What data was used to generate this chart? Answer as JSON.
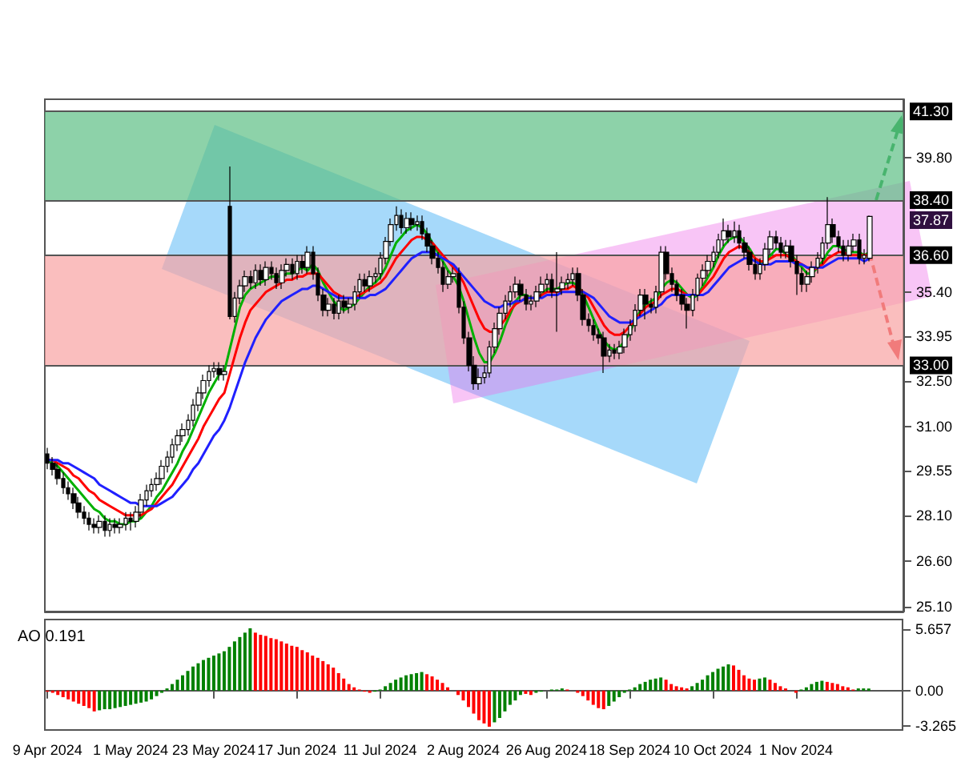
{
  "chart_data": [
    {
      "type": "candlestick",
      "color": "#000000",
      "categories": [
        null,
        null,
        null,
        null,
        null,
        null,
        null,
        null,
        null,
        null,
        null,
        null,
        null,
        null,
        null,
        null,
        null,
        null,
        null,
        null,
        null,
        null,
        null,
        null,
        null,
        null,
        null,
        null,
        null,
        null,
        null,
        null,
        null,
        null,
        null,
        null,
        null,
        null,
        null,
        null,
        null,
        null,
        null,
        null,
        null,
        null,
        null,
        null,
        null,
        null,
        null,
        null,
        null,
        null,
        null,
        null,
        null,
        null,
        null,
        null,
        null,
        null,
        null,
        null,
        null,
        null,
        null,
        null,
        null,
        null,
        null,
        null,
        null,
        null,
        null,
        null,
        null,
        null,
        null,
        null,
        null,
        null,
        null,
        null,
        null,
        null,
        null,
        null,
        null,
        null,
        null,
        null,
        null,
        null,
        null,
        null,
        null,
        null,
        null,
        null,
        null,
        null,
        null,
        null,
        null,
        null,
        null,
        null,
        null,
        null,
        null,
        null,
        null,
        null,
        null,
        null,
        null,
        null,
        null,
        null,
        null,
        null,
        null,
        null,
        null,
        null,
        null,
        null,
        null,
        null,
        null,
        null,
        null,
        null,
        null,
        null,
        null,
        null,
        null,
        null,
        null,
        null,
        null,
        null,
        null,
        null,
        null,
        null,
        null,
        null,
        null,
        null,
        null,
        null,
        null,
        null,
        null,
        null,
        null
      ],
      "ohlc": [
        [
          30.1,
          30.3,
          29.6,
          29.8
        ],
        [
          29.8,
          30.0,
          29.4,
          29.6
        ],
        [
          29.6,
          29.8,
          29.1,
          29.3
        ],
        [
          29.3,
          29.5,
          28.8,
          29.0
        ],
        [
          29.0,
          29.2,
          28.6,
          28.8
        ],
        [
          28.8,
          29.0,
          28.3,
          28.5
        ],
        [
          28.5,
          28.7,
          28.0,
          28.2
        ],
        [
          28.2,
          28.4,
          27.8,
          28.0
        ],
        [
          28.0,
          28.2,
          27.6,
          27.8
        ],
        [
          27.8,
          28.0,
          27.5,
          27.7
        ],
        [
          27.7,
          28.1,
          27.5,
          27.9
        ],
        [
          27.9,
          28.1,
          27.4,
          27.6
        ],
        [
          27.6,
          28.0,
          27.4,
          27.8
        ],
        [
          27.8,
          28.0,
          27.5,
          27.7
        ],
        [
          27.7,
          28.0,
          27.5,
          27.8
        ],
        [
          27.8,
          28.2,
          27.6,
          28.0
        ],
        [
          28.0,
          28.2,
          27.6,
          27.9
        ],
        [
          27.9,
          28.4,
          27.7,
          28.2
        ],
        [
          28.2,
          28.8,
          28.0,
          28.6
        ],
        [
          28.6,
          29.1,
          28.4,
          28.9
        ],
        [
          28.9,
          29.3,
          28.7,
          29.1
        ],
        [
          29.1,
          29.5,
          28.9,
          29.3
        ],
        [
          29.3,
          29.9,
          29.1,
          29.7
        ],
        [
          29.7,
          30.2,
          29.5,
          30.0
        ],
        [
          30.0,
          30.6,
          29.8,
          30.4
        ],
        [
          30.4,
          30.9,
          30.2,
          30.7
        ],
        [
          30.7,
          31.1,
          30.5,
          30.9
        ],
        [
          30.9,
          31.4,
          30.7,
          31.2
        ],
        [
          31.2,
          31.9,
          31.0,
          31.7
        ],
        [
          31.7,
          32.3,
          31.5,
          32.1
        ],
        [
          32.1,
          32.7,
          31.9,
          32.5
        ],
        [
          32.5,
          33.0,
          32.3,
          32.8
        ],
        [
          32.8,
          33.1,
          32.6,
          32.9
        ],
        [
          32.9,
          33.1,
          32.5,
          32.7
        ],
        [
          32.7,
          33.0,
          32.5,
          32.8
        ],
        [
          38.2,
          39.5,
          34.5,
          34.6
        ],
        [
          34.6,
          35.4,
          34.4,
          35.2
        ],
        [
          35.2,
          35.8,
          35.0,
          35.6
        ],
        [
          35.6,
          36.1,
          35.4,
          35.9
        ],
        [
          35.9,
          36.1,
          35.5,
          35.7
        ],
        [
          35.7,
          36.3,
          35.5,
          36.1
        ],
        [
          36.1,
          36.3,
          35.6,
          35.8
        ],
        [
          35.8,
          36.4,
          35.6,
          36.2
        ],
        [
          36.2,
          36.4,
          35.8,
          36.0
        ],
        [
          36.0,
          36.2,
          35.5,
          35.7
        ],
        [
          35.7,
          36.3,
          35.5,
          36.1
        ],
        [
          36.1,
          36.5,
          35.9,
          36.3
        ],
        [
          36.3,
          36.5,
          35.8,
          36.0
        ],
        [
          36.0,
          36.6,
          35.8,
          36.4
        ],
        [
          36.4,
          36.6,
          36.0,
          36.2
        ],
        [
          36.2,
          36.9,
          36.0,
          36.7
        ],
        [
          36.7,
          36.9,
          35.8,
          36.0
        ],
        [
          36.0,
          36.2,
          35.1,
          35.3
        ],
        [
          35.3,
          35.5,
          34.6,
          34.8
        ],
        [
          34.8,
          35.2,
          34.6,
          35.0
        ],
        [
          35.0,
          35.2,
          34.5,
          34.7
        ],
        [
          34.7,
          35.3,
          34.5,
          35.1
        ],
        [
          35.1,
          35.3,
          34.7,
          34.9
        ],
        [
          34.9,
          35.2,
          34.7,
          35.0
        ],
        [
          35.0,
          35.6,
          34.8,
          35.4
        ],
        [
          35.4,
          36.0,
          35.2,
          35.8
        ],
        [
          35.8,
          36.0,
          35.4,
          35.6
        ],
        [
          35.6,
          36.1,
          35.4,
          35.9
        ],
        [
          35.9,
          36.2,
          35.7,
          36.0
        ],
        [
          36.0,
          36.7,
          35.8,
          36.5
        ],
        [
          36.5,
          37.2,
          36.3,
          37.05
        ],
        [
          37.05,
          37.8,
          36.9,
          37.6
        ],
        [
          37.6,
          38.2,
          37.4,
          37.9
        ],
        [
          37.9,
          38.1,
          37.3,
          37.5
        ],
        [
          37.5,
          38.0,
          37.3,
          37.8
        ],
        [
          37.8,
          38.0,
          37.4,
          37.6
        ],
        [
          37.6,
          37.9,
          37.4,
          37.7
        ],
        [
          37.7,
          37.9,
          37.1,
          37.3
        ],
        [
          37.3,
          37.5,
          36.7,
          36.9
        ],
        [
          36.9,
          37.1,
          36.3,
          36.5
        ],
        [
          36.5,
          36.7,
          36.0,
          36.2
        ],
        [
          36.2,
          36.4,
          35.4,
          35.65
        ],
        [
          35.65,
          36.1,
          35.5,
          35.9
        ],
        [
          35.9,
          36.2,
          35.7,
          36.0
        ],
        [
          36.0,
          36.2,
          34.7,
          34.9
        ],
        [
          34.9,
          35.1,
          33.7,
          33.9
        ],
        [
          33.9,
          34.1,
          32.8,
          33.0
        ],
        [
          33.0,
          33.3,
          32.2,
          32.4
        ],
        [
          32.4,
          32.9,
          32.2,
          32.6
        ],
        [
          32.6,
          33.0,
          32.4,
          32.75
        ],
        [
          32.75,
          33.8,
          32.6,
          33.6
        ],
        [
          33.6,
          34.4,
          33.4,
          34.2
        ],
        [
          34.2,
          34.9,
          34.0,
          34.7
        ],
        [
          34.7,
          35.3,
          34.5,
          35.1
        ],
        [
          35.1,
          35.6,
          34.9,
          35.4
        ],
        [
          35.4,
          35.9,
          35.2,
          35.65
        ],
        [
          35.65,
          35.8,
          35.1,
          35.3
        ],
        [
          35.3,
          35.5,
          34.8,
          35.0
        ],
        [
          35.0,
          35.3,
          34.8,
          35.1
        ],
        [
          35.1,
          35.6,
          34.9,
          35.4
        ],
        [
          35.4,
          35.9,
          35.2,
          35.65
        ],
        [
          35.65,
          36.0,
          35.4,
          35.8
        ],
        [
          35.8,
          36.0,
          35.2,
          35.4
        ],
        [
          35.4,
          36.7,
          34.1,
          35.5
        ],
        [
          35.5,
          35.9,
          35.3,
          35.7
        ],
        [
          35.7,
          36.0,
          35.5,
          35.8
        ],
        [
          35.8,
          36.2,
          35.6,
          36.0
        ],
        [
          36.0,
          36.2,
          35.1,
          35.3
        ],
        [
          35.3,
          35.5,
          34.3,
          34.5
        ],
        [
          34.5,
          34.7,
          34.1,
          34.3
        ],
        [
          34.3,
          34.5,
          33.8,
          34.0
        ],
        [
          34.0,
          34.2,
          33.7,
          33.9
        ],
        [
          33.9,
          34.1,
          32.75,
          33.3
        ],
        [
          33.3,
          33.7,
          33.1,
          33.5
        ],
        [
          33.5,
          33.7,
          33.2,
          33.4
        ],
        [
          33.4,
          33.8,
          33.2,
          33.6
        ],
        [
          33.6,
          34.2,
          33.4,
          34.0
        ],
        [
          34.0,
          34.5,
          33.8,
          34.3
        ],
        [
          34.3,
          35.0,
          34.1,
          34.8
        ],
        [
          34.8,
          35.5,
          34.6,
          35.3
        ],
        [
          35.3,
          35.5,
          34.5,
          35.0
        ],
        [
          35.0,
          35.2,
          34.7,
          34.9
        ],
        [
          34.9,
          35.6,
          34.7,
          35.4
        ],
        [
          35.4,
          36.9,
          35.2,
          36.7
        ],
        [
          36.7,
          36.9,
          35.8,
          36.0
        ],
        [
          36.0,
          36.2,
          35.4,
          35.65
        ],
        [
          35.65,
          35.8,
          35.1,
          35.3
        ],
        [
          35.3,
          35.5,
          34.8,
          35.0
        ],
        [
          35.0,
          35.2,
          34.2,
          34.8
        ],
        [
          34.8,
          35.5,
          34.6,
          35.3
        ],
        [
          35.3,
          36.0,
          35.1,
          35.85
        ],
        [
          35.85,
          36.3,
          35.6,
          36.1
        ],
        [
          36.1,
          36.6,
          35.9,
          36.4
        ],
        [
          36.4,
          36.9,
          36.2,
          36.7
        ],
        [
          36.7,
          37.3,
          36.5,
          37.1
        ],
        [
          37.1,
          37.8,
          36.9,
          37.4
        ],
        [
          37.4,
          37.6,
          37.0,
          37.2
        ],
        [
          37.2,
          37.7,
          37.0,
          37.4
        ],
        [
          37.4,
          37.6,
          36.8,
          37.0
        ],
        [
          37.0,
          37.2,
          36.5,
          36.7
        ],
        [
          36.7,
          36.9,
          36.1,
          36.3
        ],
        [
          36.3,
          36.5,
          35.8,
          36.0
        ],
        [
          36.0,
          36.5,
          35.8,
          36.3
        ],
        [
          36.3,
          37.0,
          36.1,
          36.8
        ],
        [
          36.8,
          37.4,
          36.6,
          37.2
        ],
        [
          37.2,
          37.4,
          36.8,
          37.0
        ],
        [
          37.0,
          37.2,
          36.5,
          36.7
        ],
        [
          36.7,
          37.1,
          36.5,
          36.9
        ],
        [
          36.9,
          37.1,
          36.2,
          36.4
        ],
        [
          36.4,
          36.6,
          35.3,
          36.0
        ],
        [
          36.0,
          36.2,
          35.4,
          35.65
        ],
        [
          35.65,
          36.1,
          35.4,
          35.9
        ],
        [
          35.9,
          36.4,
          35.7,
          36.2
        ],
        [
          36.2,
          36.7,
          36.0,
          36.5
        ],
        [
          36.5,
          37.2,
          36.3,
          37.0
        ],
        [
          37.0,
          38.5,
          36.8,
          37.6
        ],
        [
          37.6,
          37.8,
          37.0,
          37.2
        ],
        [
          37.2,
          37.4,
          36.7,
          36.9
        ],
        [
          36.9,
          37.1,
          36.4,
          36.6
        ],
        [
          36.6,
          37.1,
          36.4,
          36.9
        ],
        [
          36.9,
          37.3,
          36.7,
          37.1
        ],
        [
          37.1,
          37.3,
          36.3,
          36.5
        ],
        [
          36.5,
          36.8,
          36.3,
          36.6
        ],
        [
          36.5,
          37.9,
          36.4,
          37.87
        ]
      ],
      "series": [
        {
          "type": "line",
          "color": "#00b000",
          "values": [
            29.9,
            29.8,
            29.7,
            29.5,
            29.3,
            29.1,
            28.9,
            28.7,
            28.5,
            28.3,
            28.2,
            28.0,
            27.9,
            27.9,
            27.8,
            27.8,
            27.9,
            27.9,
            28.0,
            28.2,
            28.4,
            28.7,
            28.9,
            29.2,
            29.5,
            29.8,
            30.2,
            30.5,
            30.9,
            31.3,
            31.7,
            32.1,
            32.4,
            32.7,
            32.8,
            33.5,
            34.2,
            34.9,
            35.3,
            35.5,
            35.6,
            35.7,
            35.8,
            35.9,
            35.9,
            35.9,
            36.0,
            36.0,
            36.1,
            36.2,
            36.1,
            36.3,
            36.1,
            35.7,
            35.4,
            35.1,
            34.9,
            34.8,
            34.9,
            35.0,
            35.2,
            35.4,
            35.6,
            35.7,
            35.9,
            36.2,
            36.6,
            37.0,
            37.2,
            37.4,
            37.5,
            37.6,
            37.5,
            37.3,
            37.0,
            36.7,
            36.4,
            36.1,
            35.9,
            35.6,
            35.1,
            34.5,
            33.9,
            33.4,
            33.1,
            33.1,
            33.4,
            33.8,
            34.3,
            34.7,
            35.1,
            35.3,
            35.3,
            35.2,
            35.2,
            35.3,
            35.5,
            35.5,
            35.5,
            35.6,
            35.7,
            35.7,
            35.6,
            35.3,
            34.9,
            34.5,
            34.1,
            33.8,
            33.6,
            33.5,
            33.6,
            33.8,
            34.1,
            34.5,
            34.8,
            35.0,
            35.1,
            35.2,
            35.5,
            35.7,
            35.8,
            35.7,
            35.5,
            35.3,
            35.2,
            35.3,
            35.6,
            35.9,
            36.2,
            36.6,
            36.9,
            37.1,
            37.2,
            37.2,
            37.0,
            36.8,
            36.5,
            36.3,
            36.4,
            36.6,
            36.8,
            36.8,
            36.6,
            36.6,
            36.4,
            36.2,
            36.0,
            36.0,
            36.2,
            36.4,
            36.7,
            36.9,
            36.9,
            36.8,
            36.7,
            36.7,
            36.7,
            36.6,
            36.7
          ]
        },
        {
          "type": "line",
          "color": "#ff0000",
          "values": [
            29.9,
            29.9,
            29.8,
            29.7,
            29.6,
            29.4,
            29.3,
            29.1,
            28.9,
            28.8,
            28.6,
            28.5,
            28.4,
            28.3,
            28.2,
            28.1,
            28.1,
            28.1,
            28.1,
            28.2,
            28.3,
            28.5,
            28.7,
            28.9,
            29.1,
            29.4,
            29.7,
            30.0,
            30.3,
            30.6,
            31.0,
            31.3,
            31.6,
            31.9,
            32.1,
            32.7,
            33.3,
            33.9,
            34.4,
            34.8,
            35.0,
            35.2,
            35.4,
            35.5,
            35.6,
            35.7,
            35.8,
            35.8,
            35.9,
            35.9,
            36.0,
            36.0,
            36.0,
            35.8,
            35.6,
            35.4,
            35.3,
            35.2,
            35.2,
            35.2,
            35.3,
            35.4,
            35.5,
            35.6,
            35.7,
            35.9,
            36.2,
            36.5,
            36.7,
            36.9,
            37.1,
            37.2,
            37.2,
            37.1,
            37.0,
            36.8,
            36.6,
            36.4,
            36.2,
            36.0,
            35.7,
            35.3,
            34.9,
            34.5,
            34.2,
            34.1,
            34.1,
            34.3,
            34.5,
            34.8,
            35.0,
            35.1,
            35.2,
            35.2,
            35.2,
            35.3,
            35.4,
            35.4,
            35.4,
            35.5,
            35.5,
            35.6,
            35.5,
            35.4,
            35.2,
            34.9,
            34.6,
            34.3,
            34.1,
            34.0,
            34.0,
            34.1,
            34.3,
            34.5,
            34.7,
            34.9,
            35.0,
            35.1,
            35.3,
            35.4,
            35.5,
            35.5,
            35.4,
            35.3,
            35.3,
            35.3,
            35.5,
            35.7,
            35.9,
            36.2,
            36.5,
            36.7,
            36.8,
            36.9,
            36.8,
            36.7,
            36.5,
            36.4,
            36.4,
            36.5,
            36.6,
            36.6,
            36.6,
            36.5,
            36.4,
            36.3,
            36.2,
            36.1,
            36.2,
            36.3,
            36.5,
            36.6,
            36.7,
            36.7,
            36.6,
            36.6,
            36.6,
            36.6,
            36.6
          ]
        },
        {
          "type": "line",
          "color": "#2020ff",
          "values": [
            29.9,
            29.9,
            29.9,
            29.8,
            29.8,
            29.7,
            29.6,
            29.5,
            29.4,
            29.3,
            29.1,
            29.0,
            28.9,
            28.8,
            28.7,
            28.6,
            28.5,
            28.5,
            28.4,
            28.4,
            28.4,
            28.4,
            28.5,
            28.6,
            28.7,
            28.9,
            29.1,
            29.3,
            29.6,
            29.8,
            30.1,
            30.4,
            30.7,
            30.9,
            31.2,
            31.6,
            32.1,
            32.6,
            33.1,
            33.5,
            33.9,
            34.2,
            34.5,
            34.7,
            34.9,
            35.1,
            35.2,
            35.3,
            35.4,
            35.5,
            35.5,
            35.6,
            35.6,
            35.5,
            35.4,
            35.3,
            35.2,
            35.2,
            35.2,
            35.2,
            35.2,
            35.2,
            35.3,
            35.3,
            35.4,
            35.5,
            35.7,
            35.9,
            36.1,
            36.3,
            36.5,
            36.6,
            36.7,
            36.7,
            36.7,
            36.6,
            36.5,
            36.4,
            36.3,
            36.1,
            35.9,
            35.7,
            35.5,
            35.3,
            35.1,
            35.0,
            34.9,
            34.9,
            35.0,
            35.0,
            35.1,
            35.1,
            35.2,
            35.2,
            35.2,
            35.2,
            35.3,
            35.3,
            35.3,
            35.4,
            35.4,
            35.4,
            35.4,
            35.4,
            35.3,
            35.2,
            35.0,
            34.8,
            34.6,
            34.5,
            34.4,
            34.4,
            34.4,
            34.5,
            34.6,
            34.7,
            34.8,
            34.9,
            35.0,
            35.2,
            35.3,
            35.3,
            35.3,
            35.3,
            35.3,
            35.3,
            35.3,
            35.4,
            35.6,
            35.8,
            36.0,
            36.2,
            36.3,
            36.4,
            36.5,
            36.5,
            36.4,
            36.3,
            36.3,
            36.3,
            36.4,
            36.4,
            36.4,
            36.4,
            36.3,
            36.3,
            36.2,
            36.2,
            36.2,
            36.2,
            36.3,
            36.4,
            36.5,
            36.5,
            36.5,
            36.5,
            36.5,
            36.4,
            36.5
          ]
        }
      ],
      "ylim": [
        24.95,
        41.7
      ],
      "yticks": [
        {
          "value": 25.1,
          "label": "25.10"
        },
        {
          "value": 26.6,
          "label": "26.60"
        },
        {
          "value": 28.1,
          "label": "28.10"
        },
        29.55,
        {
          "value": 31.0,
          "label": "31.00"
        },
        {
          "value": 32.5,
          "label": "32.50"
        },
        33.95,
        {
          "value": 35.4,
          "label": "35.40"
        },
        {
          "value": 39.8,
          "label": "39.80"
        }
      ],
      "ref_lines": [
        {
          "axis": "y",
          "value": 41.3,
          "label": "41.30",
          "color": "#555555"
        },
        {
          "axis": "y",
          "value": 38.4,
          "label": "38.40",
          "color": "#555555"
        },
        {
          "axis": "y",
          "value": 36.6,
          "label": "36.60",
          "color": "#555555"
        },
        {
          "axis": "y",
          "value": 33.0,
          "label": "33.00",
          "color": "#555555"
        }
      ],
      "bands": [
        {
          "axis": "y",
          "from": 38.4,
          "to": 41.3,
          "color": "#5cbf85"
        },
        {
          "axis": "y",
          "from": 33.0,
          "to": 36.6,
          "color": "#f8a3a3"
        }
      ],
      "annotations": [
        "37.87"
      ]
    },
    {
      "type": "bar",
      "title": "AO 0.191",
      "categories": [
        "9 Apr 2024",
        null,
        null,
        null,
        null,
        null,
        null,
        null,
        null,
        null,
        null,
        null,
        null,
        null,
        null,
        null,
        "1 May 2024",
        null,
        null,
        null,
        null,
        null,
        null,
        null,
        null,
        null,
        null,
        null,
        null,
        null,
        null,
        null,
        "23 May 2024",
        null,
        null,
        null,
        null,
        null,
        null,
        null,
        null,
        null,
        null,
        null,
        null,
        null,
        null,
        null,
        "17 Jun 2024",
        null,
        null,
        null,
        null,
        null,
        null,
        null,
        null,
        null,
        null,
        null,
        null,
        null,
        null,
        null,
        "11 Jul 2024",
        null,
        null,
        null,
        null,
        null,
        null,
        null,
        null,
        null,
        null,
        null,
        null,
        null,
        null,
        null,
        "2 Aug 2024",
        null,
        null,
        null,
        null,
        null,
        null,
        null,
        null,
        null,
        null,
        null,
        null,
        null,
        null,
        null,
        "26 Aug 2024",
        null,
        null,
        null,
        null,
        null,
        null,
        null,
        null,
        null,
        null,
        null,
        null,
        null,
        null,
        null,
        "18 Sep 2024",
        null,
        null,
        null,
        null,
        null,
        null,
        null,
        null,
        null,
        null,
        null,
        null,
        null,
        null,
        null,
        "10 Oct 2024",
        null,
        null,
        null,
        null,
        null,
        null,
        null,
        null,
        null,
        null,
        null,
        null,
        null,
        null,
        null,
        "1 Nov 2024",
        null,
        null,
        null,
        null,
        null,
        null,
        null,
        null,
        null,
        null,
        null,
        null,
        null,
        null
      ],
      "values": [
        -0.1,
        -0.2,
        -0.4,
        -0.6,
        -0.8,
        -1.0,
        -1.2,
        -1.4,
        -1.6,
        -1.9,
        -1.8,
        -1.7,
        -1.7,
        -1.6,
        -1.5,
        -1.4,
        -1.3,
        -1.2,
        -1.1,
        -1.0,
        -0.8,
        -0.5,
        -0.2,
        0.2,
        0.6,
        1.0,
        1.4,
        1.8,
        2.2,
        2.5,
        2.8,
        3.0,
        3.2,
        3.4,
        3.6,
        4.0,
        4.5,
        4.9,
        5.3,
        5.7,
        5.3,
        5.1,
        5.0,
        4.8,
        4.7,
        4.5,
        4.3,
        4.1,
        4.0,
        3.7,
        3.5,
        3.2,
        3.0,
        2.7,
        2.4,
        2.1,
        1.6,
        1.1,
        0.6,
        0.3,
        0.1,
        -0.1,
        -0.2,
        -0.1,
        0.1,
        0.4,
        0.7,
        1.0,
        1.2,
        1.4,
        1.5,
        1.6,
        1.7,
        1.5,
        1.3,
        1.0,
        0.7,
        0.3,
        0.0,
        -0.4,
        -0.9,
        -1.5,
        -2.1,
        -2.7,
        -3.0,
        -3.3,
        -2.9,
        -2.5,
        -1.9,
        -1.3,
        -0.9,
        -0.4,
        -0.3,
        -0.4,
        -0.2,
        -0.1,
        0.0,
        0.1,
        0.1,
        0.2,
        0.1,
        0.0,
        -0.2,
        -0.5,
        -0.9,
        -1.3,
        -1.6,
        -1.7,
        -1.4,
        -1.0,
        -0.6,
        -0.2,
        0.1,
        0.3,
        0.6,
        0.8,
        1.0,
        1.1,
        1.2,
        1.0,
        0.6,
        0.4,
        0.3,
        0.2,
        0.4,
        0.7,
        1.0,
        1.4,
        1.7,
        2.0,
        2.2,
        2.4,
        2.3,
        1.9,
        1.4,
        1.1,
        1.0,
        1.1,
        1.2,
        1.0,
        0.7,
        0.4,
        0.2,
        0.0,
        -0.2,
        0.1,
        0.3,
        0.6,
        0.8,
        0.9,
        0.8,
        0.7,
        0.6,
        0.4,
        0.3,
        0.1,
        0.2,
        0.2,
        0.191
      ],
      "colors": [
        "#ff0000",
        "#ff0000",
        "#ff0000",
        "#ff0000",
        "#ff0000",
        "#ff0000",
        "#ff0000",
        "#ff0000",
        "#ff0000",
        "#ff0000",
        "#008000",
        "#008000",
        "#008000",
        "#008000",
        "#008000",
        "#008000",
        "#008000",
        "#008000",
        "#008000",
        "#008000",
        "#008000",
        "#008000",
        "#008000",
        "#008000",
        "#008000",
        "#008000",
        "#008000",
        "#008000",
        "#008000",
        "#008000",
        "#008000",
        "#008000",
        "#008000",
        "#008000",
        "#008000",
        "#008000",
        "#008000",
        "#008000",
        "#008000",
        "#008000",
        "#ff0000",
        "#ff0000",
        "#ff0000",
        "#ff0000",
        "#ff0000",
        "#ff0000",
        "#ff0000",
        "#ff0000",
        "#ff0000",
        "#ff0000",
        "#ff0000",
        "#ff0000",
        "#ff0000",
        "#ff0000",
        "#ff0000",
        "#ff0000",
        "#ff0000",
        "#ff0000",
        "#ff0000",
        "#ff0000",
        "#ff0000",
        "#ff0000",
        "#ff0000",
        "#008000",
        "#008000",
        "#008000",
        "#008000",
        "#008000",
        "#008000",
        "#008000",
        "#008000",
        "#008000",
        "#008000",
        "#ff0000",
        "#ff0000",
        "#ff0000",
        "#ff0000",
        "#ff0000",
        "#ff0000",
        "#ff0000",
        "#ff0000",
        "#ff0000",
        "#ff0000",
        "#ff0000",
        "#ff0000",
        "#ff0000",
        "#008000",
        "#008000",
        "#008000",
        "#008000",
        "#008000",
        "#008000",
        "#ff0000",
        "#ff0000",
        "#008000",
        "#008000",
        "#008000",
        "#008000",
        "#008000",
        "#008000",
        "#ff0000",
        "#ff0000",
        "#ff0000",
        "#ff0000",
        "#ff0000",
        "#ff0000",
        "#ff0000",
        "#ff0000",
        "#008000",
        "#008000",
        "#008000",
        "#008000",
        "#008000",
        "#008000",
        "#008000",
        "#008000",
        "#008000",
        "#008000",
        "#008000",
        "#ff0000",
        "#ff0000",
        "#ff0000",
        "#ff0000",
        "#ff0000",
        "#008000",
        "#008000",
        "#008000",
        "#008000",
        "#008000",
        "#008000",
        "#008000",
        "#008000",
        "#ff0000",
        "#ff0000",
        "#ff0000",
        "#ff0000",
        "#ff0000",
        "#008000",
        "#008000",
        "#ff0000",
        "#ff0000",
        "#ff0000",
        "#ff0000",
        "#ff0000",
        "#ff0000",
        "#008000",
        "#008000",
        "#008000",
        "#008000",
        "#008000",
        "#ff0000",
        "#ff0000",
        "#ff0000",
        "#ff0000",
        "#ff0000",
        "#ff0000",
        "#008000",
        "#008000",
        "#008000"
      ],
      "ylim": [
        -3.6,
        6.5
      ],
      "yticks": [
        5.657,
        {
          "value": 0,
          "label": "0.00"
        },
        -3.265
      ]
    }
  ]
}
